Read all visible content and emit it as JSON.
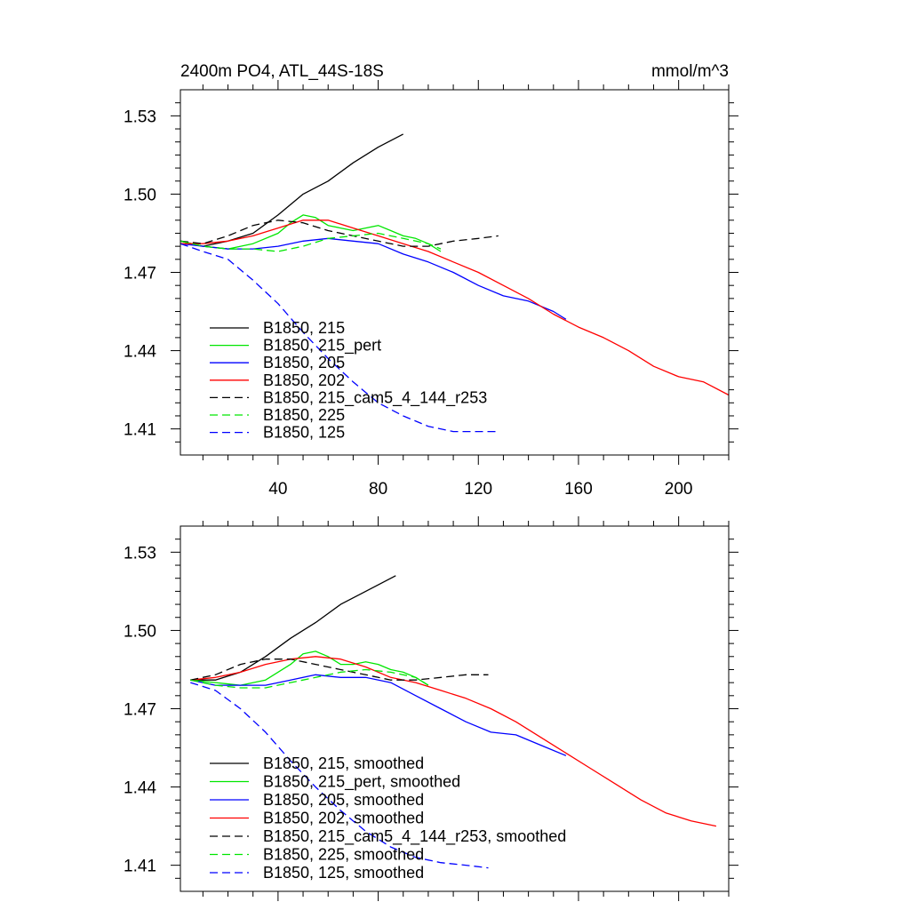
{
  "chart_data": [
    {
      "type": "line",
      "title": "2400m PO4, ATL_44S-18S",
      "units": "mmol/m^3",
      "xlim": [
        1,
        220
      ],
      "ylim": [
        1.4,
        1.54
      ],
      "x_ticks": [
        40,
        80,
        120,
        160,
        200
      ],
      "y_ticks": [
        1.53,
        1.5,
        1.47,
        1.44,
        1.41
      ],
      "y_tick_labels": [
        "1.53",
        "1.50",
        "1.47",
        "1.44",
        "1.41"
      ],
      "series": [
        {
          "name": "B1850, 215",
          "color": "#000000",
          "dash": false,
          "x": [
            1,
            10,
            20,
            30,
            40,
            50,
            60,
            70,
            80,
            90
          ],
          "y": [
            1.482,
            1.48,
            1.482,
            1.485,
            1.492,
            1.5,
            1.505,
            1.512,
            1.518,
            1.523
          ]
        },
        {
          "name": "B1850, 215_pert",
          "color": "#00e600",
          "dash": false,
          "x": [
            1,
            10,
            20,
            30,
            40,
            45,
            50,
            55,
            60,
            65,
            70,
            75,
            80,
            85,
            90,
            95,
            100,
            105
          ],
          "y": [
            1.482,
            1.48,
            1.479,
            1.481,
            1.485,
            1.489,
            1.492,
            1.491,
            1.488,
            1.487,
            1.486,
            1.487,
            1.488,
            1.486,
            1.484,
            1.483,
            1.481,
            1.478
          ]
        },
        {
          "name": "B1850, 205",
          "color": "#0000ff",
          "dash": false,
          "x": [
            1,
            10,
            20,
            30,
            40,
            50,
            60,
            70,
            80,
            90,
            100,
            110,
            120,
            130,
            140,
            150,
            155
          ],
          "y": [
            1.481,
            1.48,
            1.479,
            1.479,
            1.48,
            1.482,
            1.483,
            1.482,
            1.481,
            1.477,
            1.474,
            1.47,
            1.465,
            1.461,
            1.459,
            1.455,
            1.452
          ]
        },
        {
          "name": "B1850, 202",
          "color": "#ff0000",
          "dash": false,
          "x": [
            1,
            10,
            20,
            30,
            40,
            50,
            60,
            70,
            80,
            90,
            100,
            110,
            120,
            130,
            140,
            150,
            160,
            170,
            180,
            190,
            200,
            210,
            220
          ],
          "y": [
            1.481,
            1.481,
            1.482,
            1.484,
            1.487,
            1.49,
            1.49,
            1.487,
            1.484,
            1.481,
            1.478,
            1.474,
            1.47,
            1.465,
            1.46,
            1.454,
            1.449,
            1.445,
            1.44,
            1.434,
            1.43,
            1.428,
            1.423
          ]
        },
        {
          "name": "B1850, 215_cam5_4_144_r253",
          "color": "#000000",
          "dash": true,
          "x": [
            1,
            10,
            20,
            30,
            40,
            50,
            60,
            70,
            80,
            90,
            100,
            110,
            120,
            128
          ],
          "y": [
            1.482,
            1.481,
            1.484,
            1.488,
            1.49,
            1.489,
            1.486,
            1.484,
            1.482,
            1.48,
            1.48,
            1.482,
            1.483,
            1.484
          ]
        },
        {
          "name": "B1850, 225",
          "color": "#00e600",
          "dash": true,
          "x": [
            1,
            10,
            20,
            30,
            40,
            50,
            60,
            70,
            80,
            90,
            100,
            105
          ],
          "y": [
            1.482,
            1.48,
            1.479,
            1.479,
            1.478,
            1.48,
            1.483,
            1.484,
            1.485,
            1.483,
            1.481,
            1.479
          ]
        },
        {
          "name": "B1850, 125",
          "color": "#0000ff",
          "dash": true,
          "x": [
            1,
            10,
            20,
            30,
            40,
            50,
            60,
            70,
            80,
            90,
            100,
            110,
            120,
            128
          ],
          "y": [
            1.481,
            1.478,
            1.475,
            1.467,
            1.458,
            1.447,
            1.437,
            1.428,
            1.42,
            1.415,
            1.411,
            1.409,
            1.409,
            1.409
          ]
        }
      ]
    },
    {
      "type": "line",
      "title": "",
      "units": "",
      "xlim": [
        1,
        220
      ],
      "ylim": [
        1.4,
        1.54
      ],
      "x_ticks": [
        40,
        80,
        120,
        160,
        200
      ],
      "y_ticks": [
        1.53,
        1.5,
        1.47,
        1.44,
        1.41
      ],
      "y_tick_labels": [
        "1.53",
        "1.50",
        "1.47",
        "1.44",
        "1.41"
      ],
      "series": [
        {
          "name": "B1850, 215, smoothed",
          "color": "#000000",
          "dash": false,
          "x": [
            5,
            15,
            25,
            35,
            45,
            55,
            65,
            75,
            87
          ],
          "y": [
            1.481,
            1.481,
            1.484,
            1.49,
            1.497,
            1.503,
            1.51,
            1.515,
            1.521
          ]
        },
        {
          "name": "B1850, 215_pert, smoothed",
          "color": "#00e600",
          "dash": false,
          "x": [
            5,
            15,
            25,
            35,
            45,
            50,
            55,
            60,
            65,
            70,
            75,
            80,
            85,
            90,
            95,
            100
          ],
          "y": [
            1.481,
            1.48,
            1.479,
            1.481,
            1.487,
            1.491,
            1.492,
            1.49,
            1.487,
            1.487,
            1.488,
            1.487,
            1.485,
            1.484,
            1.482,
            1.479
          ]
        },
        {
          "name": "B1850, 205, smoothed",
          "color": "#0000ff",
          "dash": false,
          "x": [
            5,
            15,
            25,
            35,
            45,
            55,
            65,
            75,
            85,
            95,
            105,
            115,
            125,
            135,
            145,
            155
          ],
          "y": [
            1.481,
            1.479,
            1.479,
            1.479,
            1.481,
            1.483,
            1.482,
            1.482,
            1.48,
            1.475,
            1.47,
            1.465,
            1.461,
            1.46,
            1.456,
            1.452
          ]
        },
        {
          "name": "B1850, 202, smoothed",
          "color": "#ff0000",
          "dash": false,
          "x": [
            5,
            15,
            25,
            35,
            45,
            55,
            65,
            75,
            85,
            95,
            105,
            115,
            125,
            135,
            145,
            155,
            165,
            175,
            185,
            195,
            205,
            215
          ],
          "y": [
            1.481,
            1.482,
            1.484,
            1.487,
            1.489,
            1.49,
            1.489,
            1.486,
            1.482,
            1.48,
            1.477,
            1.474,
            1.47,
            1.465,
            1.459,
            1.453,
            1.447,
            1.441,
            1.435,
            1.43,
            1.427,
            1.425
          ]
        },
        {
          "name": "B1850, 215_cam5_4_144_r253, smoothed",
          "color": "#000000",
          "dash": true,
          "x": [
            5,
            15,
            25,
            35,
            45,
            55,
            65,
            75,
            85,
            95,
            105,
            115,
            124
          ],
          "y": [
            1.481,
            1.483,
            1.487,
            1.489,
            1.489,
            1.487,
            1.485,
            1.483,
            1.481,
            1.481,
            1.482,
            1.483,
            1.483
          ]
        },
        {
          "name": "B1850, 225, smoothed",
          "color": "#00e600",
          "dash": true,
          "x": [
            5,
            15,
            25,
            35,
            45,
            55,
            65,
            75,
            85,
            95,
            100
          ],
          "y": [
            1.481,
            1.479,
            1.478,
            1.478,
            1.48,
            1.482,
            1.484,
            1.485,
            1.484,
            1.482,
            1.479
          ]
        },
        {
          "name": "B1850, 125, smoothed",
          "color": "#0000ff",
          "dash": true,
          "x": [
            5,
            15,
            25,
            35,
            45,
            55,
            65,
            75,
            85,
            95,
            105,
            115,
            124
          ],
          "y": [
            1.48,
            1.477,
            1.47,
            1.461,
            1.45,
            1.44,
            1.431,
            1.423,
            1.417,
            1.413,
            1.411,
            1.41,
            1.409
          ]
        }
      ]
    }
  ]
}
